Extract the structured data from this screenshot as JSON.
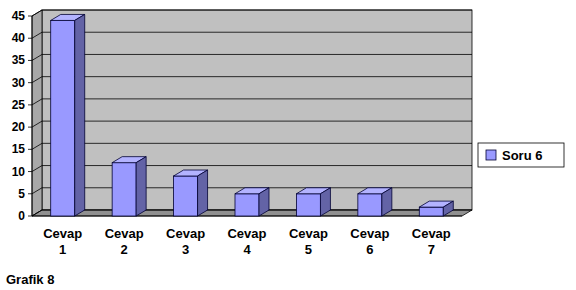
{
  "chart_data": {
    "type": "bar",
    "caption": "Grafik 8",
    "categories": [
      "Cevap 1",
      "Cevap 2",
      "Cevap 3",
      "Cevap 4",
      "Cevap 5",
      "Cevap 6",
      "Cevap 7"
    ],
    "series": [
      {
        "name": "Soru 6",
        "color": "#9999ff",
        "values": [
          44,
          12,
          9,
          5,
          5,
          5,
          2
        ]
      }
    ],
    "ylim": [
      0,
      45
    ],
    "yticks": [
      0,
      5,
      10,
      15,
      20,
      25,
      30,
      35,
      40,
      45
    ],
    "grid": true,
    "legend": "right"
  }
}
